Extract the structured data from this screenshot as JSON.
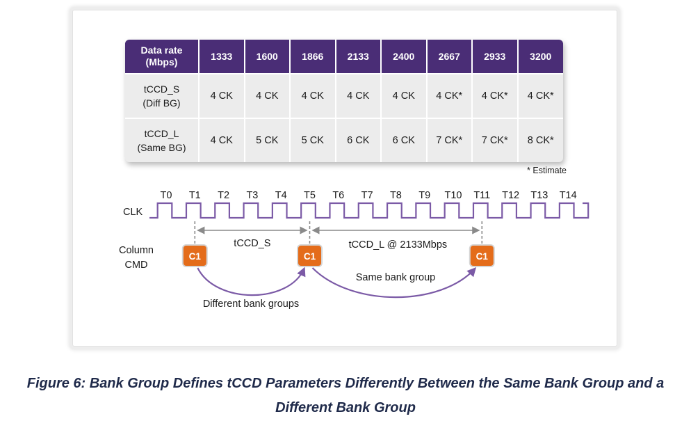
{
  "table": {
    "header": [
      "Data rate\n(Mbps)",
      "1333",
      "1600",
      "1866",
      "2133",
      "2400",
      "2667",
      "2933",
      "3200"
    ],
    "rows": [
      {
        "label": "tCCD_S\n(Diff BG)",
        "values": [
          "4 CK",
          "4 CK",
          "4 CK",
          "4 CK",
          "4 CK",
          "4 CK*",
          "4 CK*",
          "4 CK*"
        ]
      },
      {
        "label": "tCCD_L\n(Same BG)",
        "values": [
          "4 CK",
          "5 CK",
          "5 CK",
          "6 CK",
          "6 CK",
          "7 CK*",
          "7 CK*",
          "8 CK*"
        ]
      }
    ],
    "footnote": "* Estimate"
  },
  "timing": {
    "ticks": [
      "T0",
      "T1",
      "T2",
      "T3",
      "T4",
      "T5",
      "T6",
      "T7",
      "T8",
      "T9",
      "T10",
      "T11",
      "T12",
      "T13",
      "T14"
    ],
    "clk_label": "CLK",
    "cmd_label_line1": "Column",
    "cmd_label_line2": "CMD",
    "cmd_box_label": "C1",
    "cmd_ticks": [
      "T1",
      "T5",
      "T11"
    ],
    "span1_label": "tCCD_S",
    "span2_label": "tCCD_L @ 2133Mbps",
    "arc_upper_label": "Same bank group",
    "arc_lower_label": "Different bank groups"
  },
  "colors": {
    "header_bg": "#4a2d76",
    "clock_line": "#7b5aa6",
    "cmd_box": "#e46c1a",
    "arc": "#7b5aa6",
    "caption": "#1f2a4a"
  },
  "caption": {
    "line1": "Figure 6: Bank Group Defines tCCD Parameters Differently Between the Same Bank Group and a",
    "line2": "Different Bank Group"
  }
}
